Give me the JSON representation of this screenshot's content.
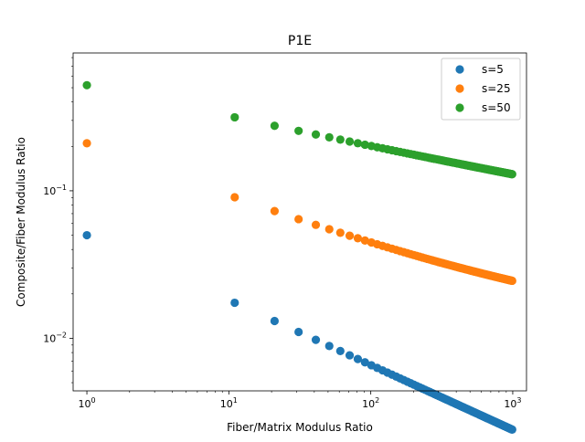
{
  "chart_data": {
    "type": "scatter",
    "title": "P1E",
    "xlabel": "Fiber/Matrix Modulus Ratio",
    "ylabel": "Composite/Fiber Modulus Ratio",
    "xscale": "log",
    "yscale": "log",
    "xlim": [
      0.8,
      1250
    ],
    "ylim": [
      0.0044,
      0.86
    ],
    "xticks": [
      {
        "value": 1,
        "base": "10",
        "exp": "0"
      },
      {
        "value": 10,
        "base": "10",
        "exp": "1"
      },
      {
        "value": 100,
        "base": "10",
        "exp": "2"
      },
      {
        "value": 1000,
        "base": "10",
        "exp": "3"
      }
    ],
    "yticks": [
      {
        "value": 0.01,
        "base": "10",
        "exp": "−2"
      },
      {
        "value": 0.1,
        "base": "10",
        "exp": "−1"
      }
    ],
    "grid": false,
    "legend": "top-right",
    "x": [
      1,
      11,
      21,
      31,
      41,
      51,
      61,
      71,
      81,
      91,
      101,
      111,
      121,
      131,
      141,
      151,
      161,
      171,
      181,
      191,
      201,
      211,
      221,
      231,
      241,
      251,
      261,
      271,
      281,
      291,
      301,
      311,
      321,
      331,
      341,
      351,
      361,
      371,
      381,
      391,
      401,
      411,
      421,
      431,
      441,
      451,
      461,
      471,
      481,
      491,
      501,
      511,
      521,
      531,
      541,
      551,
      561,
      571,
      581,
      591,
      601,
      611,
      621,
      631,
      641,
      651,
      661,
      671,
      681,
      691,
      701,
      711,
      721,
      731,
      741,
      751,
      761,
      771,
      781,
      791,
      801,
      811,
      821,
      831,
      841,
      851,
      861,
      871,
      881,
      891,
      901,
      911,
      921,
      931,
      941,
      951,
      961,
      971,
      981,
      991
    ],
    "series": [
      {
        "name": "s=5",
        "color": "#1f77b4",
        "a": 0.05,
        "b": 0.44,
        "c": 0
      },
      {
        "name": "s=25",
        "color": "#ff7f0e",
        "a": 0.2,
        "b": 0.38,
        "c": 0.01
      },
      {
        "name": "s=50",
        "color": "#2ca02c",
        "a": 0.5,
        "b": 0.22,
        "c": 0.02
      }
    ]
  }
}
